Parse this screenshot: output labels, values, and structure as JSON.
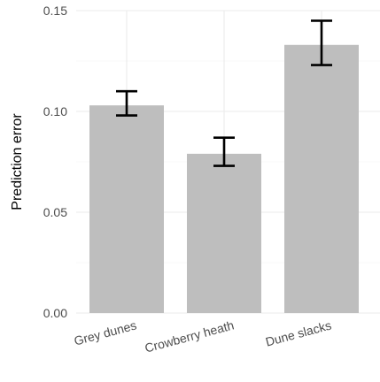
{
  "chart_data": {
    "type": "bar",
    "categories": [
      "Grey dunes",
      "Crowberry heath",
      "Dune slacks"
    ],
    "values": [
      0.103,
      0.079,
      0.133
    ],
    "error_low": [
      0.098,
      0.073,
      0.123
    ],
    "error_high": [
      0.11,
      0.087,
      0.145
    ],
    "xlabel": "",
    "ylabel": "Prediction error",
    "ylim": [
      0,
      0.15
    ],
    "yticks": [
      "0.00",
      "0.05",
      "0.10",
      "0.15"
    ],
    "grid": true,
    "legend": "none",
    "bar_color": "#bebebe",
    "errorbar_color": "#000000"
  }
}
